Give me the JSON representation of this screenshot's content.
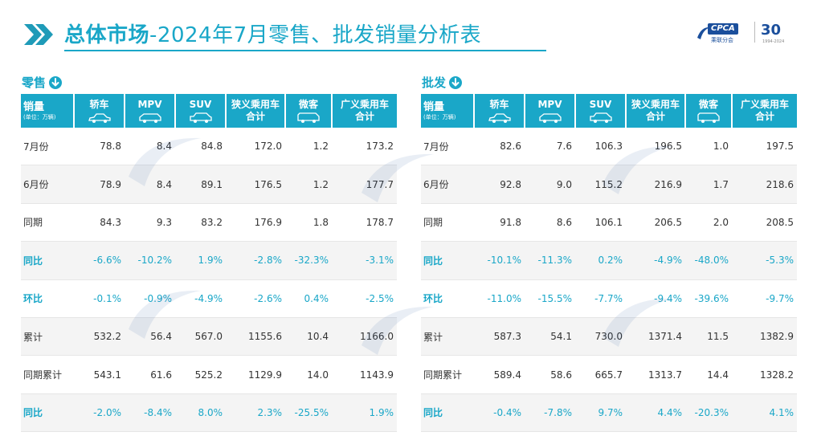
{
  "title": {
    "part1": "总体市场",
    "part2": "-2024年7月零售、批发销量分析表"
  },
  "logo": {
    "brand": "CPCA",
    "brand_sub": "乘联分会",
    "anniversary": "30",
    "anniversary_sub": "1994-2024"
  },
  "retail": {
    "section_title": "零售",
    "header": {
      "label": "销量",
      "unit": "(单位：万辆)",
      "columns": [
        {
          "lines": [
            "轿车"
          ],
          "icon": "sedan-car-icon"
        },
        {
          "lines": [
            "MPV"
          ],
          "icon": "mpv-car-icon"
        },
        {
          "lines": [
            "SUV"
          ],
          "icon": "suv-car-icon"
        },
        {
          "lines": [
            "狭义乘用车",
            "合计"
          ],
          "icon": ""
        },
        {
          "lines": [
            "微客"
          ],
          "icon": "minivan-icon"
        },
        {
          "lines": [
            "广义乘用车",
            "合计"
          ],
          "icon": ""
        }
      ]
    },
    "rows": [
      {
        "label": "7月份",
        "values": [
          "78.8",
          "8.4",
          "84.8",
          "172.0",
          "1.2",
          "173.2"
        ],
        "highlight": false
      },
      {
        "label": "6月份",
        "values": [
          "78.9",
          "8.4",
          "89.1",
          "176.5",
          "1.2",
          "177.7"
        ],
        "highlight": false
      },
      {
        "label": "同期",
        "values": [
          "84.3",
          "9.3",
          "83.2",
          "176.9",
          "1.8",
          "178.7"
        ],
        "highlight": false
      },
      {
        "label": "同比",
        "values": [
          "-6.6%",
          "-10.2%",
          "1.9%",
          "-2.8%",
          "-32.3%",
          "-3.1%"
        ],
        "highlight": true
      },
      {
        "label": "环比",
        "values": [
          "-0.1%",
          "-0.9%",
          "-4.9%",
          "-2.6%",
          "0.4%",
          "-2.5%"
        ],
        "highlight": true
      },
      {
        "label": "累计",
        "values": [
          "532.2",
          "56.4",
          "567.0",
          "1155.6",
          "10.4",
          "1166.0"
        ],
        "highlight": false
      },
      {
        "label": "同期累计",
        "values": [
          "543.1",
          "61.6",
          "525.2",
          "1129.9",
          "14.0",
          "1143.9"
        ],
        "highlight": false
      },
      {
        "label": "同比",
        "values": [
          "-2.0%",
          "-8.4%",
          "8.0%",
          "2.3%",
          "-25.5%",
          "1.9%"
        ],
        "highlight": true
      }
    ]
  },
  "wholesale": {
    "section_title": "批发",
    "header": {
      "label": "销量",
      "unit": "(单位：万辆)",
      "columns": [
        {
          "lines": [
            "轿车"
          ],
          "icon": "sedan-car-icon"
        },
        {
          "lines": [
            "MPV"
          ],
          "icon": "mpv-car-icon"
        },
        {
          "lines": [
            "SUV"
          ],
          "icon": "suv-car-icon"
        },
        {
          "lines": [
            "狭义乘用车",
            "合计"
          ],
          "icon": ""
        },
        {
          "lines": [
            "微客"
          ],
          "icon": "minivan-icon"
        },
        {
          "lines": [
            "广义乘用车",
            "合计"
          ],
          "icon": ""
        }
      ]
    },
    "rows": [
      {
        "label": "7月份",
        "values": [
          "82.6",
          "7.6",
          "106.3",
          "196.5",
          "1.0",
          "197.5"
        ],
        "highlight": false
      },
      {
        "label": "6月份",
        "values": [
          "92.8",
          "9.0",
          "115.2",
          "216.9",
          "1.7",
          "218.6"
        ],
        "highlight": false
      },
      {
        "label": "同期",
        "values": [
          "91.8",
          "8.6",
          "106.1",
          "206.5",
          "2.0",
          "208.5"
        ],
        "highlight": false
      },
      {
        "label": "同比",
        "values": [
          "-10.1%",
          "-11.3%",
          "0.2%",
          "-4.9%",
          "-48.0%",
          "-5.3%"
        ],
        "highlight": true
      },
      {
        "label": "环比",
        "values": [
          "-11.0%",
          "-15.5%",
          "-7.7%",
          "-9.4%",
          "-39.6%",
          "-9.7%"
        ],
        "highlight": true
      },
      {
        "label": "累计",
        "values": [
          "587.3",
          "54.1",
          "730.0",
          "1371.4",
          "11.5",
          "1382.9"
        ],
        "highlight": false
      },
      {
        "label": "同期累计",
        "values": [
          "589.4",
          "58.6",
          "665.7",
          "1313.7",
          "14.4",
          "1328.2"
        ],
        "highlight": false
      },
      {
        "label": "同比",
        "values": [
          "-0.4%",
          "-7.8%",
          "9.7%",
          "4.4%",
          "-20.3%",
          "4.1%"
        ],
        "highlight": true
      }
    ]
  },
  "colors": {
    "accent": "#1aa7c8",
    "brand": "#1b4f9c",
    "row_alt": "#f4f4f4"
  }
}
